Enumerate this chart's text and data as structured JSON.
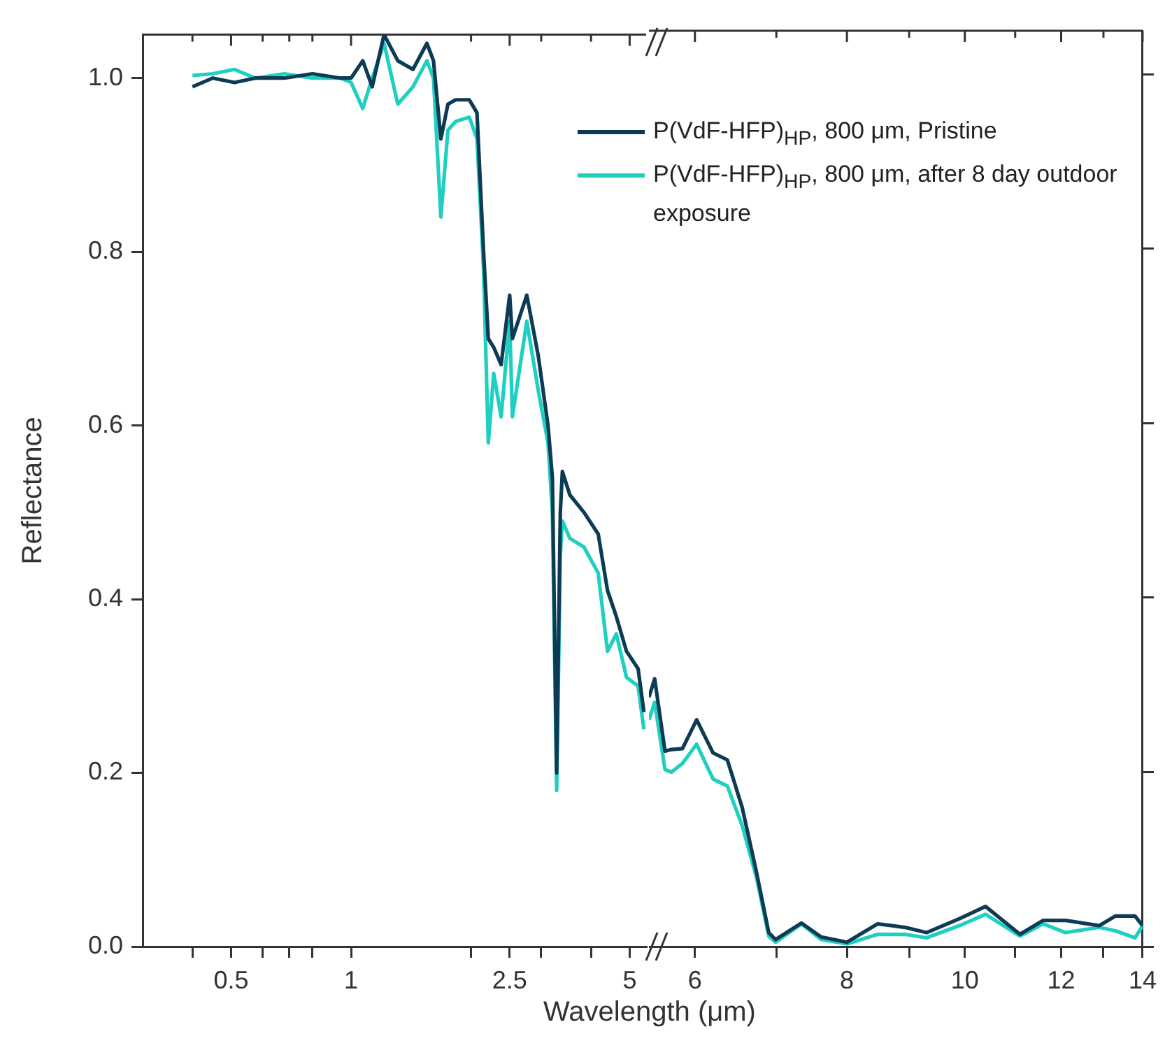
{
  "chart_data": [
    {
      "type": "line",
      "xlabel": "Wavelength (μm)",
      "ylabel": "Reflectance",
      "log": "x",
      "legend": "top right",
      "x": [
        0.4,
        0.45,
        0.51,
        0.575,
        0.68,
        0.8,
        0.94,
        1.0,
        1.07,
        1.13,
        1.21,
        1.31,
        1.43,
        1.55,
        1.61,
        1.68,
        1.75,
        1.83,
        1.98,
        2.07,
        2.15,
        2.21,
        2.28,
        2.38,
        2.5,
        2.54,
        2.76,
        2.95,
        3.12,
        3.2,
        3.28,
        3.35,
        3.39,
        3.54,
        3.84,
        4.17,
        4.4,
        4.63,
        4.91,
        5.25,
        5.43
      ],
      "series": [
        {
          "name": "P(VdF-HFP)$_{HP}$, 800 μm, Pristine",
          "color": "#0d3b55",
          "values": [
            0.99,
            1.0,
            0.995,
            1.0,
            1.0,
            1.005,
            1.0,
            1.0,
            1.02,
            0.99,
            1.05,
            1.02,
            1.01,
            1.04,
            1.02,
            0.93,
            0.97,
            0.975,
            0.975,
            0.96,
            0.8,
            0.7,
            0.69,
            0.67,
            0.75,
            0.7,
            0.75,
            0.68,
            0.6,
            0.54,
            0.2,
            0.5,
            0.547,
            0.52,
            0.5,
            0.475,
            0.41,
            0.38,
            0.34,
            0.32,
            0.27
          ]
        },
        {
          "name": "P(VdF-HFP)$_{HP}$, 800 μm, after 8 day outdoor exposure",
          "color": "#1fcfc0",
          "values": [
            1.003,
            1.005,
            1.01,
            1.0,
            1.005,
            1.0,
            1.0,
            0.995,
            0.965,
            1.0,
            1.04,
            0.97,
            0.99,
            1.02,
            1.0,
            0.84,
            0.94,
            0.95,
            0.955,
            0.93,
            0.78,
            0.58,
            0.66,
            0.61,
            0.72,
            0.61,
            0.72,
            0.64,
            0.58,
            0.5,
            0.18,
            0.45,
            0.49,
            0.47,
            0.46,
            0.43,
            0.34,
            0.36,
            0.31,
            0.3,
            0.25
          ]
        }
      ],
      "xlim": [
        0.3,
        5.5
      ],
      "xticks": [
        {
          "value": 0.4,
          "label": null
        },
        0.5,
        {
          "value": 0.6,
          "label": null
        },
        {
          "value": 0.7,
          "label": null
        },
        {
          "value": 0.8,
          "label": null
        },
        1,
        {
          "value": 2,
          "label": null
        },
        2.5,
        {
          "value": 3,
          "label": null
        },
        {
          "value": 4,
          "label": null
        },
        5
      ],
      "ylim": [
        0,
        1.05
      ],
      "yticks": [
        {
          "value": 0,
          "label": "0.0"
        },
        0.2,
        0.4,
        0.6,
        0.8,
        {
          "value": 1,
          "label": "1.0"
        }
      ]
    },
    {
      "type": "line",
      "log": "x",
      "tick_labels": "x",
      "x": [
        5.5,
        5.56,
        5.67,
        5.74,
        5.86,
        6.02,
        6.21,
        6.38,
        6.56,
        6.74,
        6.9,
        6.99,
        7.34,
        7.62,
        8.0,
        8.48,
        8.93,
        9.3,
        9.9,
        10.4,
        11.1,
        11.6,
        12.1,
        12.9,
        13.3,
        13.8,
        14
      ],
      "series": [
        {
          "color": "#0d3b55",
          "values": [
            0.286,
            0.307,
            0.224,
            0.226,
            0.227,
            0.26,
            0.222,
            0.214,
            0.16,
            0.086,
            0.016,
            0.008,
            0.027,
            0.011,
            0.005,
            0.026,
            0.022,
            0.016,
            0.032,
            0.046,
            0.014,
            0.03,
            0.03,
            0.024,
            0.035,
            0.035,
            0.024
          ]
        },
        {
          "color": "#1fcfc0",
          "values": [
            0.26,
            0.28,
            0.203,
            0.2,
            0.21,
            0.232,
            0.192,
            0.184,
            0.139,
            0.08,
            0.012,
            0.005,
            0.026,
            0.008,
            0.003,
            0.014,
            0.014,
            0.01,
            0.024,
            0.037,
            0.012,
            0.026,
            0.016,
            0.022,
            0.018,
            0.01,
            0.024
          ]
        }
      ],
      "xlim": [
        5.5,
        14
      ],
      "xticks": [
        6,
        {
          "value": 7,
          "label": null
        },
        8,
        {
          "value": 9,
          "label": null
        },
        10,
        {
          "value": 11,
          "label": null
        },
        12,
        {
          "value": 13,
          "label": null
        },
        14
      ],
      "ylim": [
        0,
        1.05
      ],
      "yticks": [
        {
          "value": 0,
          "label": null
        },
        {
          "value": 0.2,
          "label": null
        },
        {
          "value": 0.4,
          "label": null
        },
        {
          "value": 0.6,
          "label": null
        },
        {
          "value": 0.8,
          "label": null
        },
        {
          "value": 1,
          "label": null
        }
      ]
    }
  ]
}
